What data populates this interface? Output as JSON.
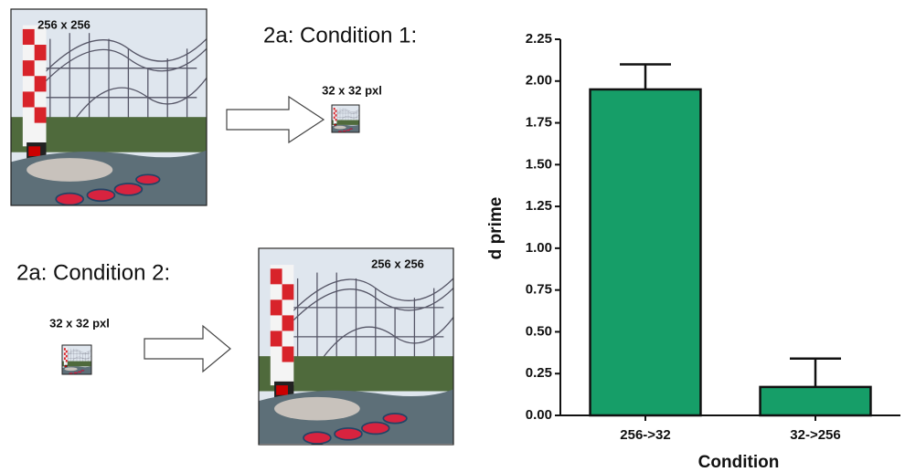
{
  "panels": {
    "condition_1": {
      "heading": "2a: Condition 1:",
      "large_label": "256 x 256",
      "small_label": "32 x 32 pxl"
    },
    "condition_2": {
      "heading": "2a: Condition 2:",
      "small_label": "32 x 32 pxl",
      "large_label": "256 x 256"
    }
  },
  "chart_data": {
    "type": "bar",
    "x_label": "Condition",
    "y_label": "d prime",
    "categories": [
      "256->32",
      "32->256"
    ],
    "series": [
      {
        "values": [
          1.95,
          0.17
        ],
        "errors": [
          0.15,
          0.17
        ],
        "color": "#169e68"
      }
    ],
    "ylim": [
      0,
      2.25
    ],
    "yticks": [
      {
        "value": 0,
        "label": "0.00"
      },
      0.25,
      {
        "value": 0.5,
        "label": "0.50"
      },
      0.75,
      {
        "value": 1,
        "label": "1.00"
      },
      1.25,
      {
        "value": 1.5,
        "label": "1.50"
      },
      1.75,
      {
        "value": 2,
        "label": "2.00"
      },
      2.25
    ],
    "grid": false
  }
}
